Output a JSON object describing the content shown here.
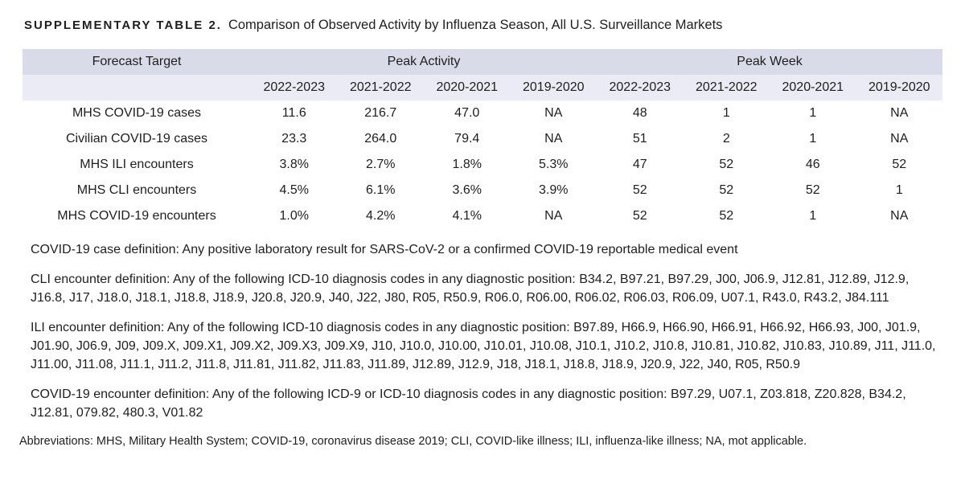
{
  "title": {
    "label": "SUPPLEMENTARY TABLE 2.",
    "text": "Comparison of Observed Activity by Influenza Season, All U.S. Surveillance Markets"
  },
  "table": {
    "corner_header": "Forecast Target",
    "group_headers": [
      "Peak Activity",
      "Peak Week"
    ],
    "season_columns": [
      "2022-2023",
      "2021-2022",
      "2020-2021",
      "2019-2020",
      "2022-2023",
      "2021-2022",
      "2020-2021",
      "2019-2020"
    ],
    "rows": [
      {
        "target": "MHS COVID-19 cases",
        "values": [
          "11.6",
          "216.7",
          "47.0",
          "NA",
          "48",
          "1",
          "1",
          "NA"
        ]
      },
      {
        "target": "Civilian COVID-19 cases",
        "values": [
          "23.3",
          "264.0",
          "79.4",
          "NA",
          "51",
          "2",
          "1",
          "NA"
        ]
      },
      {
        "target": "MHS ILI encounters",
        "values": [
          "3.8%",
          "2.7%",
          "1.8%",
          "5.3%",
          "47",
          "52",
          "46",
          "52"
        ]
      },
      {
        "target": "MHS CLI encounters",
        "values": [
          "4.5%",
          "6.1%",
          "3.6%",
          "3.9%",
          "52",
          "52",
          "52",
          "1"
        ]
      },
      {
        "target": "MHS COVID-19 encounters",
        "values": [
          "1.0%",
          "4.2%",
          "4.1%",
          "NA",
          "52",
          "52",
          "1",
          "NA"
        ]
      }
    ],
    "notes": [
      "COVID-19 case definition: Any positive laboratory result for SARS-CoV-2 or a confirmed COVID-19 reportable medical event",
      "CLI encounter definition: Any of the following ICD-10 diagnosis codes in any diagnostic position: B34.2, B97.21, B97.29, J00, J06.9, J12.81, J12.89, J12.9, J16.8, J17, J18.0, J18.1, J18.8, J18.9, J20.8, J20.9, J40, J22, J80, R05, R50.9, R06.0, R06.00, R06.02, R06.03, R06.09, U07.1, R43.0, R43.2, J84.111",
      "ILI encounter definition: Any of the following ICD-10 diagnosis codes in any diagnostic position: B97.89, H66.9, H66.90, H66.91, H66.92, H66.93, J00, J01.9, J01.90, J06.9, J09, J09.X, J09.X1, J09.X2, J09.X3, J09.X9, J10, J10.0, J10.00, J10.01, J10.08, J10.1, J10.2, J10.8, J10.81, J10.82, J10.83, J10.89, J11, J11.0, J11.00, J11.08, J11.1, J11.2, J11.8, J11.81, J11.82, J11.83, J11.89, J12.89, J12.9, J18, J18.1, J18.8, J18.9, J20.9, J22, J40, R05, R50.9",
      "COVID-19 encounter definition: Any of the following ICD-9 or ICD-10 diagnosis codes in any diagnostic position: B97.29, U07.1, Z03.818, Z20.828, B34.2, J12.81, 079.82, 480.3, V01.82"
    ]
  },
  "abbreviations": "Abbreviations: MHS, Military Health System; COVID-19, coronavirus disease 2019; CLI, COVID-like illness; ILI, influenza-like illness; NA, mot applicable.",
  "colors": {
    "header_band": "#d9dbe9",
    "subheader_band": "#eaebf4",
    "text": "#1e1e1e",
    "background": "#ffffff"
  }
}
